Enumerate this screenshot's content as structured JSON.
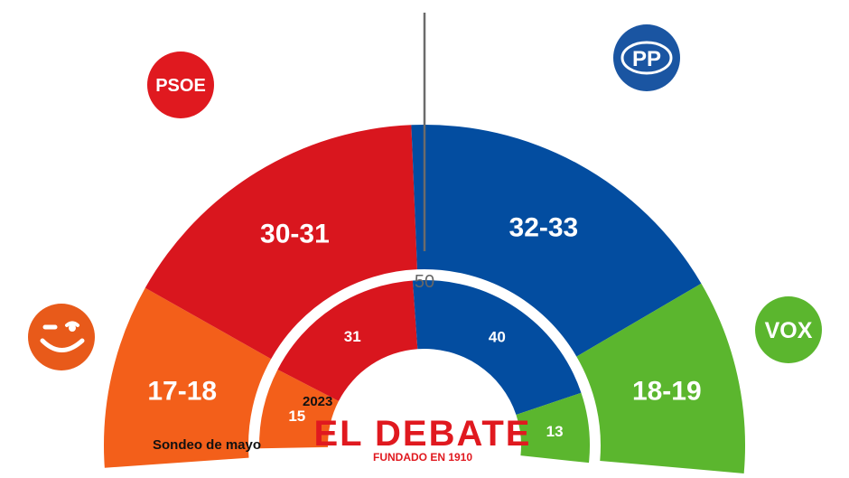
{
  "chart_data": {
    "type": "parliament-semicircle",
    "majority_label": "50",
    "outer_ring": {
      "label": "Sondeo de mayo",
      "parties": [
        {
          "party": "Adelante Andalucía",
          "label": "17-18",
          "value": 17.5,
          "color": "#f35f1a"
        },
        {
          "party": "PSOE",
          "label": "30-31",
          "value": 30.5,
          "color": "#d9161e"
        },
        {
          "party": "PP",
          "label": "32-33",
          "value": 32.5,
          "color": "#034da0"
        },
        {
          "party": "VOX",
          "label": "18-19",
          "value": 18.5,
          "color": "#5bb62e"
        }
      ]
    },
    "inner_ring": {
      "label": "2023",
      "parties": [
        {
          "party": "Adelante Andalucía",
          "label": "15",
          "value": 15,
          "color": "#f35f1a"
        },
        {
          "party": "PSOE",
          "label": "31",
          "value": 31,
          "color": "#d9161e"
        },
        {
          "party": "PP",
          "label": "40",
          "value": 40,
          "color": "#034da0"
        },
        {
          "party": "VOX",
          "label": "13",
          "value": 13,
          "color": "#5bb62e"
        }
      ]
    }
  },
  "logos": {
    "psoe": {
      "text": "PSOE",
      "color": "#e0191f"
    },
    "pp": {
      "text": "PP",
      "color": "#1a55a2"
    },
    "vox": {
      "text": "VOX",
      "color": "#5bb62e"
    },
    "adelante": {
      "icon": "smiley-icon",
      "color": "#e85a1a"
    }
  },
  "brand": {
    "name": "EL DEBATE",
    "tagline": "FUNDADO EN 1910",
    "color": "#e0191f"
  }
}
